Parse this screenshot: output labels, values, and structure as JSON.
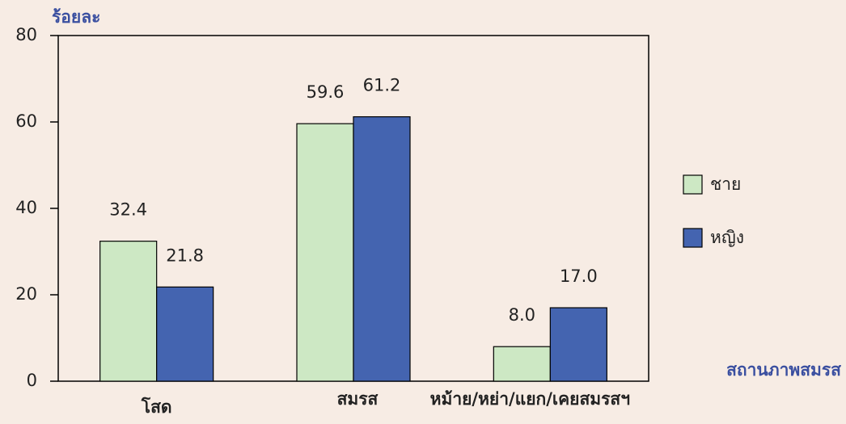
{
  "chart_data": {
    "type": "bar",
    "ylabel": "ร้อยละ",
    "xlabel": "สถานภาพสมรส",
    "categories": [
      "โสด",
      "สมรส",
      "หม้าย/หย่า/แยก/เคยสมรสฯ"
    ],
    "series": [
      {
        "name": "ชาย",
        "color": "#cde8c4",
        "values": [
          32.4,
          59.6,
          8
        ],
        "value_labels": [
          "32.4",
          "59.6",
          "8.0"
        ]
      },
      {
        "name": "หญิง",
        "color": "#4464b0",
        "values": [
          21.8,
          61.2,
          17
        ],
        "value_labels": [
          "21.8",
          "61.2",
          "17.0"
        ]
      }
    ],
    "ylim": [
      0,
      80
    ],
    "yticks": [
      0,
      20,
      40,
      60,
      80
    ],
    "grid": false,
    "legend": "right"
  }
}
